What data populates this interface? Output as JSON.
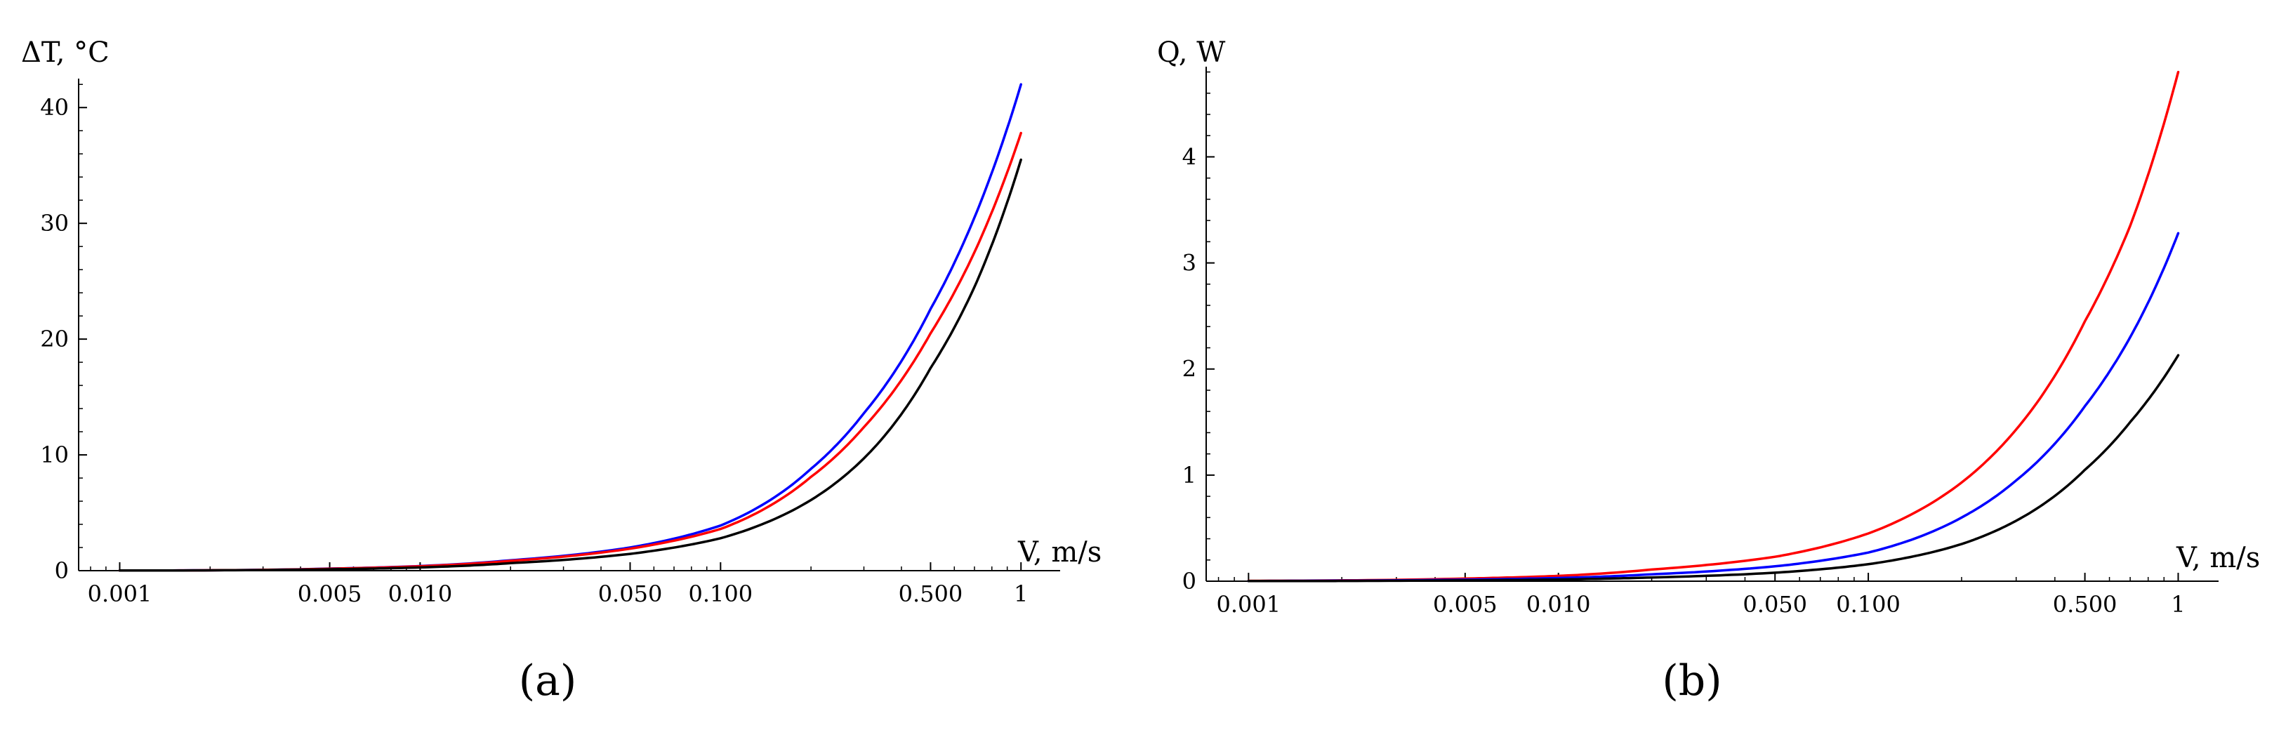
{
  "colors": {
    "black": "#000000",
    "blue": "#0000ff",
    "red": "#ff0000"
  },
  "chart_data": [
    {
      "type": "line",
      "panel_label": "(a)",
      "x_scale": "log",
      "xlim": [
        0.00073,
        1.35
      ],
      "ylim": [
        0,
        42.5
      ],
      "xlabel": "V, m/s",
      "ylabel": "ΔT, °C",
      "x_ticks": [
        {
          "value": 0.001,
          "label": "0.001"
        },
        {
          "value": 0.005,
          "label": "0.005"
        },
        {
          "value": 0.01,
          "label": "0.010"
        },
        {
          "value": 0.05,
          "label": "0.050"
        },
        {
          "value": 0.1,
          "label": "0.100"
        },
        {
          "value": 0.5,
          "label": "0.500"
        },
        {
          "value": 1,
          "label": "1"
        }
      ],
      "y_ticks": [
        {
          "value": 0,
          "label": "0"
        },
        {
          "value": 10,
          "label": "10"
        },
        {
          "value": 20,
          "label": "20"
        },
        {
          "value": 30,
          "label": "30"
        },
        {
          "value": 40,
          "label": "40"
        }
      ],
      "series": [
        {
          "color": "#0000ff",
          "x": [
            0.001,
            0.005,
            0.01,
            0.02,
            0.05,
            0.1,
            0.2,
            0.3,
            0.5,
            0.7,
            1
          ],
          "y": [
            0.01,
            0.18,
            0.4,
            0.9,
            2.0,
            3.9,
            8.8,
            13.6,
            22.6,
            30.5,
            42.0
          ]
        },
        {
          "color": "#ff0000",
          "x": [
            0.001,
            0.005,
            0.01,
            0.02,
            0.05,
            0.1,
            0.2,
            0.3,
            0.5,
            0.7,
            1
          ],
          "y": [
            0.01,
            0.17,
            0.38,
            0.85,
            1.9,
            3.6,
            8.1,
            12.4,
            20.5,
            27.5,
            37.8
          ]
        },
        {
          "color": "#000000",
          "x": [
            0.001,
            0.005,
            0.01,
            0.02,
            0.05,
            0.1,
            0.2,
            0.3,
            0.5,
            0.7,
            1
          ],
          "y": [
            0.01,
            0.12,
            0.28,
            0.65,
            1.45,
            2.8,
            6.1,
            9.7,
            17.5,
            24.5,
            35.5
          ]
        }
      ]
    },
    {
      "type": "line",
      "panel_label": "(b)",
      "x_scale": "log",
      "xlim": [
        0.00073,
        1.35
      ],
      "ylim": [
        0,
        4.85
      ],
      "xlabel": "V, m/s",
      "ylabel": "Q, W",
      "x_ticks": [
        {
          "value": 0.001,
          "label": "0.001"
        },
        {
          "value": 0.005,
          "label": "0.005"
        },
        {
          "value": 0.01,
          "label": "0.010"
        },
        {
          "value": 0.05,
          "label": "0.050"
        },
        {
          "value": 0.1,
          "label": "0.100"
        },
        {
          "value": 0.5,
          "label": "0.500"
        },
        {
          "value": 1,
          "label": "1"
        }
      ],
      "y_ticks": [
        {
          "value": 0,
          "label": "0"
        },
        {
          "value": 1,
          "label": "1"
        },
        {
          "value": 2,
          "label": "2"
        },
        {
          "value": 3,
          "label": "3"
        },
        {
          "value": 4,
          "label": "4"
        }
      ],
      "series": [
        {
          "color": "#ff0000",
          "x": [
            0.001,
            0.005,
            0.01,
            0.02,
            0.05,
            0.1,
            0.2,
            0.3,
            0.5,
            0.7,
            1
          ],
          "y": [
            0.003,
            0.025,
            0.05,
            0.11,
            0.23,
            0.45,
            0.93,
            1.43,
            2.45,
            3.35,
            4.8
          ]
        },
        {
          "color": "#0000ff",
          "x": [
            0.001,
            0.005,
            0.01,
            0.02,
            0.05,
            0.1,
            0.2,
            0.3,
            0.5,
            0.7,
            1
          ],
          "y": [
            0.002,
            0.015,
            0.03,
            0.065,
            0.14,
            0.27,
            0.6,
            0.95,
            1.65,
            2.3,
            3.28
          ]
        },
        {
          "color": "#000000",
          "x": [
            0.001,
            0.005,
            0.01,
            0.02,
            0.05,
            0.1,
            0.2,
            0.3,
            0.5,
            0.7,
            1
          ],
          "y": [
            0.001,
            0.008,
            0.016,
            0.035,
            0.08,
            0.16,
            0.35,
            0.57,
            1.05,
            1.5,
            2.13
          ]
        }
      ]
    }
  ]
}
